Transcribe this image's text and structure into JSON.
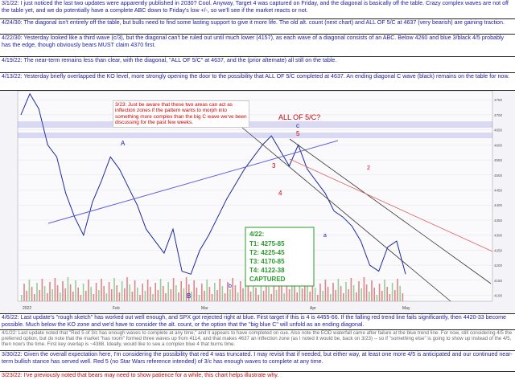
{
  "notes_top": [
    {
      "text": "3/1/22:  I just noticed the last two updates were apparently published in 2030?  Cool.  Anyway, Target 4 was captured on Friday, and the diagonal is basically off the table.  Crazy complex waves are not off the table yet, and we do potentially have a complete ABC down to Friday's low +/-, so we'll see if the market reacts or not.",
      "style": "blue"
    },
    {
      "text": "4/24/30:  The diagonal isn't entirely off the table, but bulls need to find some lasting support to give it more life.  The old alt. count (next chart) and ALL OF 5/C at 4637 (very bearish) are gaining traction.",
      "style": "blue"
    },
    {
      "text": "4/22/30:  Yesterday looked like a third wave (c/3), but the diagonal can't be ruled out until much lower (4157), as each wave of a diagonal consists of an ABC.  Below 4260 and blue 3/black 4/5 probably has the edge, though obviously bears MUST claim 4370 first.",
      "style": "blue"
    },
    {
      "text": "4/19/22:  The near-term remains less than clear, with the diagonal, \"ALL OF 5/C\" at 4637, and the (prior alternate) all still on the table.",
      "style": "blue"
    },
    {
      "text": "4/13/22:  Yesterday briefly overlapped the KO level, more strongly opening the door to the possibility that ALL OF 5/C completed at 4637.  An ending diagonal C wave (black) remains on the table for now.",
      "style": "blue"
    }
  ],
  "notes_bottom": [
    {
      "text": "4/6/22:  Last update's \"rough sketch\" has worked out well enough, and SPX got rejected right at blue.  First target if this is 4 is 4455-66.  If the falling red trend line fails significantly, then 4420-33 become possible.  Much below the KO zone and we'd have to consider the alt. count, or the option that the \"big blue C\" will unfold as an ending diagonal.",
      "style": "blue"
    },
    {
      "text": "4/1/22:  Last update noted that \"Red 5 of 3/c has enough waves to complete at any time,\" and it appears to have completed on cue.  Also note the EOD waterfall came after failure at the blue trend line.  For now, still considering 4/5 the preferred option, but do note that the market \"has room\" formed three waves up from 4114, and that makes 4637 an inflection zone (as I noted it would be, back on 3/23) -- so if \"something else\" is going to show up instead of the 4/5, then now's the time.  First key overlap is ~4388.  Ideally, would like to see a complex blue 4 that burns time.",
      "style": "gray"
    },
    {
      "text": "3/30/22:  Given the overall expectation here, I'm considering the possibility that red 4 was truncated.  I may revisit that if needed, but either way, at least one more 4/5 is anticipated and our continued near-term bullish stance has served well.  Red 5 (no Star Wars reference intended) of 3/c has enough waves to complete at any time.",
      "style": "blue"
    },
    {
      "text": "3/23/22:  I've previously noted that bears may need to show patience for a while, this chart helps illustrate why.",
      "style": "red"
    }
  ],
  "annotations": {
    "inflection_note": "3/23:  Just be aware that these two areas can act as inflection zones if the pattern wants to morph into something more complex than the big C wave we've been discussing for the past few weeks.",
    "all_of_5c": "ALL OF 5/C?",
    "targets_title": "4/22:",
    "targets": [
      "T1: 4275-85",
      "T2: 4225-45",
      "T3: 4170-85",
      "T4: 4122-38"
    ],
    "captured": "CAPTURED",
    "wave_A": "A",
    "wave_B": "B",
    "wave_b_small": "b",
    "wave_c_blue": "c",
    "wave_5_red": "5",
    "wave_3_red": "3",
    "wave_4_red": "4",
    "wave_2_red": "2",
    "wave_a_blue": "a"
  },
  "chart_data": {
    "type": "line",
    "title": "",
    "x_labels": [
      "2022",
      "Feb",
      "Mar",
      "Apr",
      "May"
    ],
    "y_ticks": [
      "4750",
      "4700",
      "4650",
      "4600",
      "4550",
      "4500",
      "4450",
      "4400",
      "4350",
      "4300",
      "4250",
      "4200",
      "4150",
      "4100"
    ],
    "ylim": [
      4080,
      4780
    ],
    "series": [
      {
        "values": [
          4700,
          4770,
          4720,
          4600,
          4560,
          4440,
          4360,
          4300,
          4410,
          4480,
          4560,
          4520,
          4460,
          4400,
          4320,
          4280,
          4240,
          4320,
          4180,
          4170,
          4250,
          4300,
          4360,
          4420,
          4470,
          4520,
          4560,
          4600,
          4630,
          4580,
          4530,
          4600,
          4520,
          4480,
          4440,
          4380,
          4360,
          4330,
          4280,
          4200,
          4180,
          4260,
          4280,
          4170
        ]
      }
    ],
    "colors": {
      "price": "#1e2a9e",
      "red_wave": "#cc0000",
      "blue_wave": "#1a1ab0",
      "target_green": "#2a9a2a",
      "trend_red": "#e06060",
      "trend_blue": "#6060e0",
      "trend_black": "#333333"
    }
  }
}
